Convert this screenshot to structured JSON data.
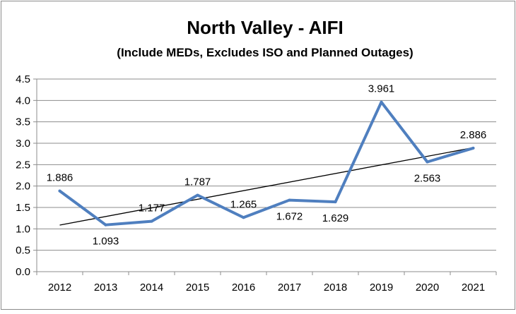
{
  "chart_data": {
    "type": "line",
    "title": "North Valley - AIFI",
    "subtitle": "(Include MEDs, Excludes ISO and Planned Outages)",
    "categories": [
      "2012",
      "2013",
      "2014",
      "2015",
      "2016",
      "2017",
      "2018",
      "2019",
      "2020",
      "2021"
    ],
    "series": [
      {
        "values": [
          1.886,
          1.093,
          1.177,
          1.787,
          1.265,
          1.672,
          1.629,
          3.961,
          2.563,
          2.886
        ],
        "labels": [
          "1.886",
          "1.093",
          "1.177",
          "1.787",
          "1.265",
          "1.672",
          "1.629",
          "3.961",
          "2.563",
          "2.886"
        ],
        "color": "#4f7fbf"
      }
    ],
    "trendline": {
      "type": "linear",
      "color": "#000000"
    },
    "y_ticks": [
      "0.0",
      "0.5",
      "1.0",
      "1.5",
      "2.0",
      "2.5",
      "3.0",
      "3.5",
      "4.0",
      "4.5"
    ],
    "ylim": [
      0,
      4.5
    ],
    "grid": true,
    "legend": "none"
  }
}
